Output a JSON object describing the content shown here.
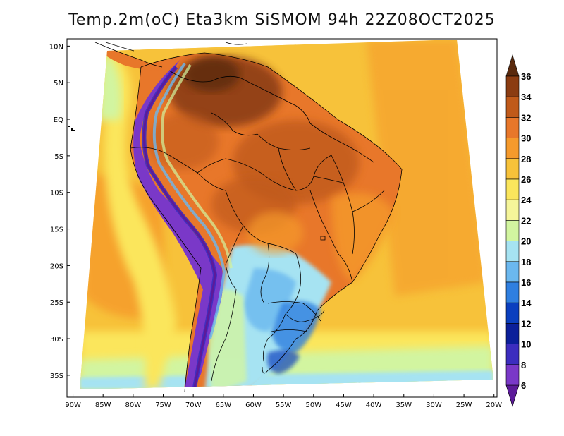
{
  "title": "Temp.2m(oC) Eta3km SiSMOM 94h 22Z08OCT2025",
  "map": {
    "lon_range": [
      -91,
      -19.5
    ],
    "lat_range": [
      -38,
      11
    ],
    "x_ticks": [
      "90W",
      "85W",
      "80W",
      "75W",
      "70W",
      "65W",
      "60W",
      "55W",
      "50W",
      "45W",
      "40W",
      "35W",
      "30W",
      "25W",
      "20W"
    ],
    "x_tick_values": [
      -90,
      -85,
      -80,
      -75,
      -70,
      -65,
      -60,
      -55,
      -50,
      -45,
      -40,
      -35,
      -30,
      -25,
      -20
    ],
    "y_ticks": [
      "10N",
      "5N",
      "EQ",
      "5S",
      "10S",
      "15S",
      "20S",
      "25S",
      "30S",
      "35S"
    ],
    "y_tick_values": [
      10,
      5,
      0,
      -5,
      -10,
      -15,
      -20,
      -25,
      -30,
      -35
    ],
    "variable": "2m temperature",
    "units": "oC"
  },
  "colorbar": {
    "labels": [
      "36",
      "34",
      "32",
      "30",
      "28",
      "26",
      "24",
      "22",
      "20",
      "18",
      "16",
      "14",
      "12",
      "10",
      "8",
      "6"
    ],
    "colors": [
      "#5a2a0e",
      "#8b3c12",
      "#c05a1a",
      "#e8772a",
      "#f59a2c",
      "#f7c23a",
      "#fbe65c",
      "#f5f59a",
      "#d2f5a0",
      "#a6e3f2",
      "#6bb8ef",
      "#2f7fe0",
      "#0a3fbf",
      "#0b1f9a",
      "#3c2dbf",
      "#7a38c8",
      "#5c1a9a"
    ],
    "top_color": "#5a2a0e",
    "bottom_color": "#5c1a9a"
  }
}
